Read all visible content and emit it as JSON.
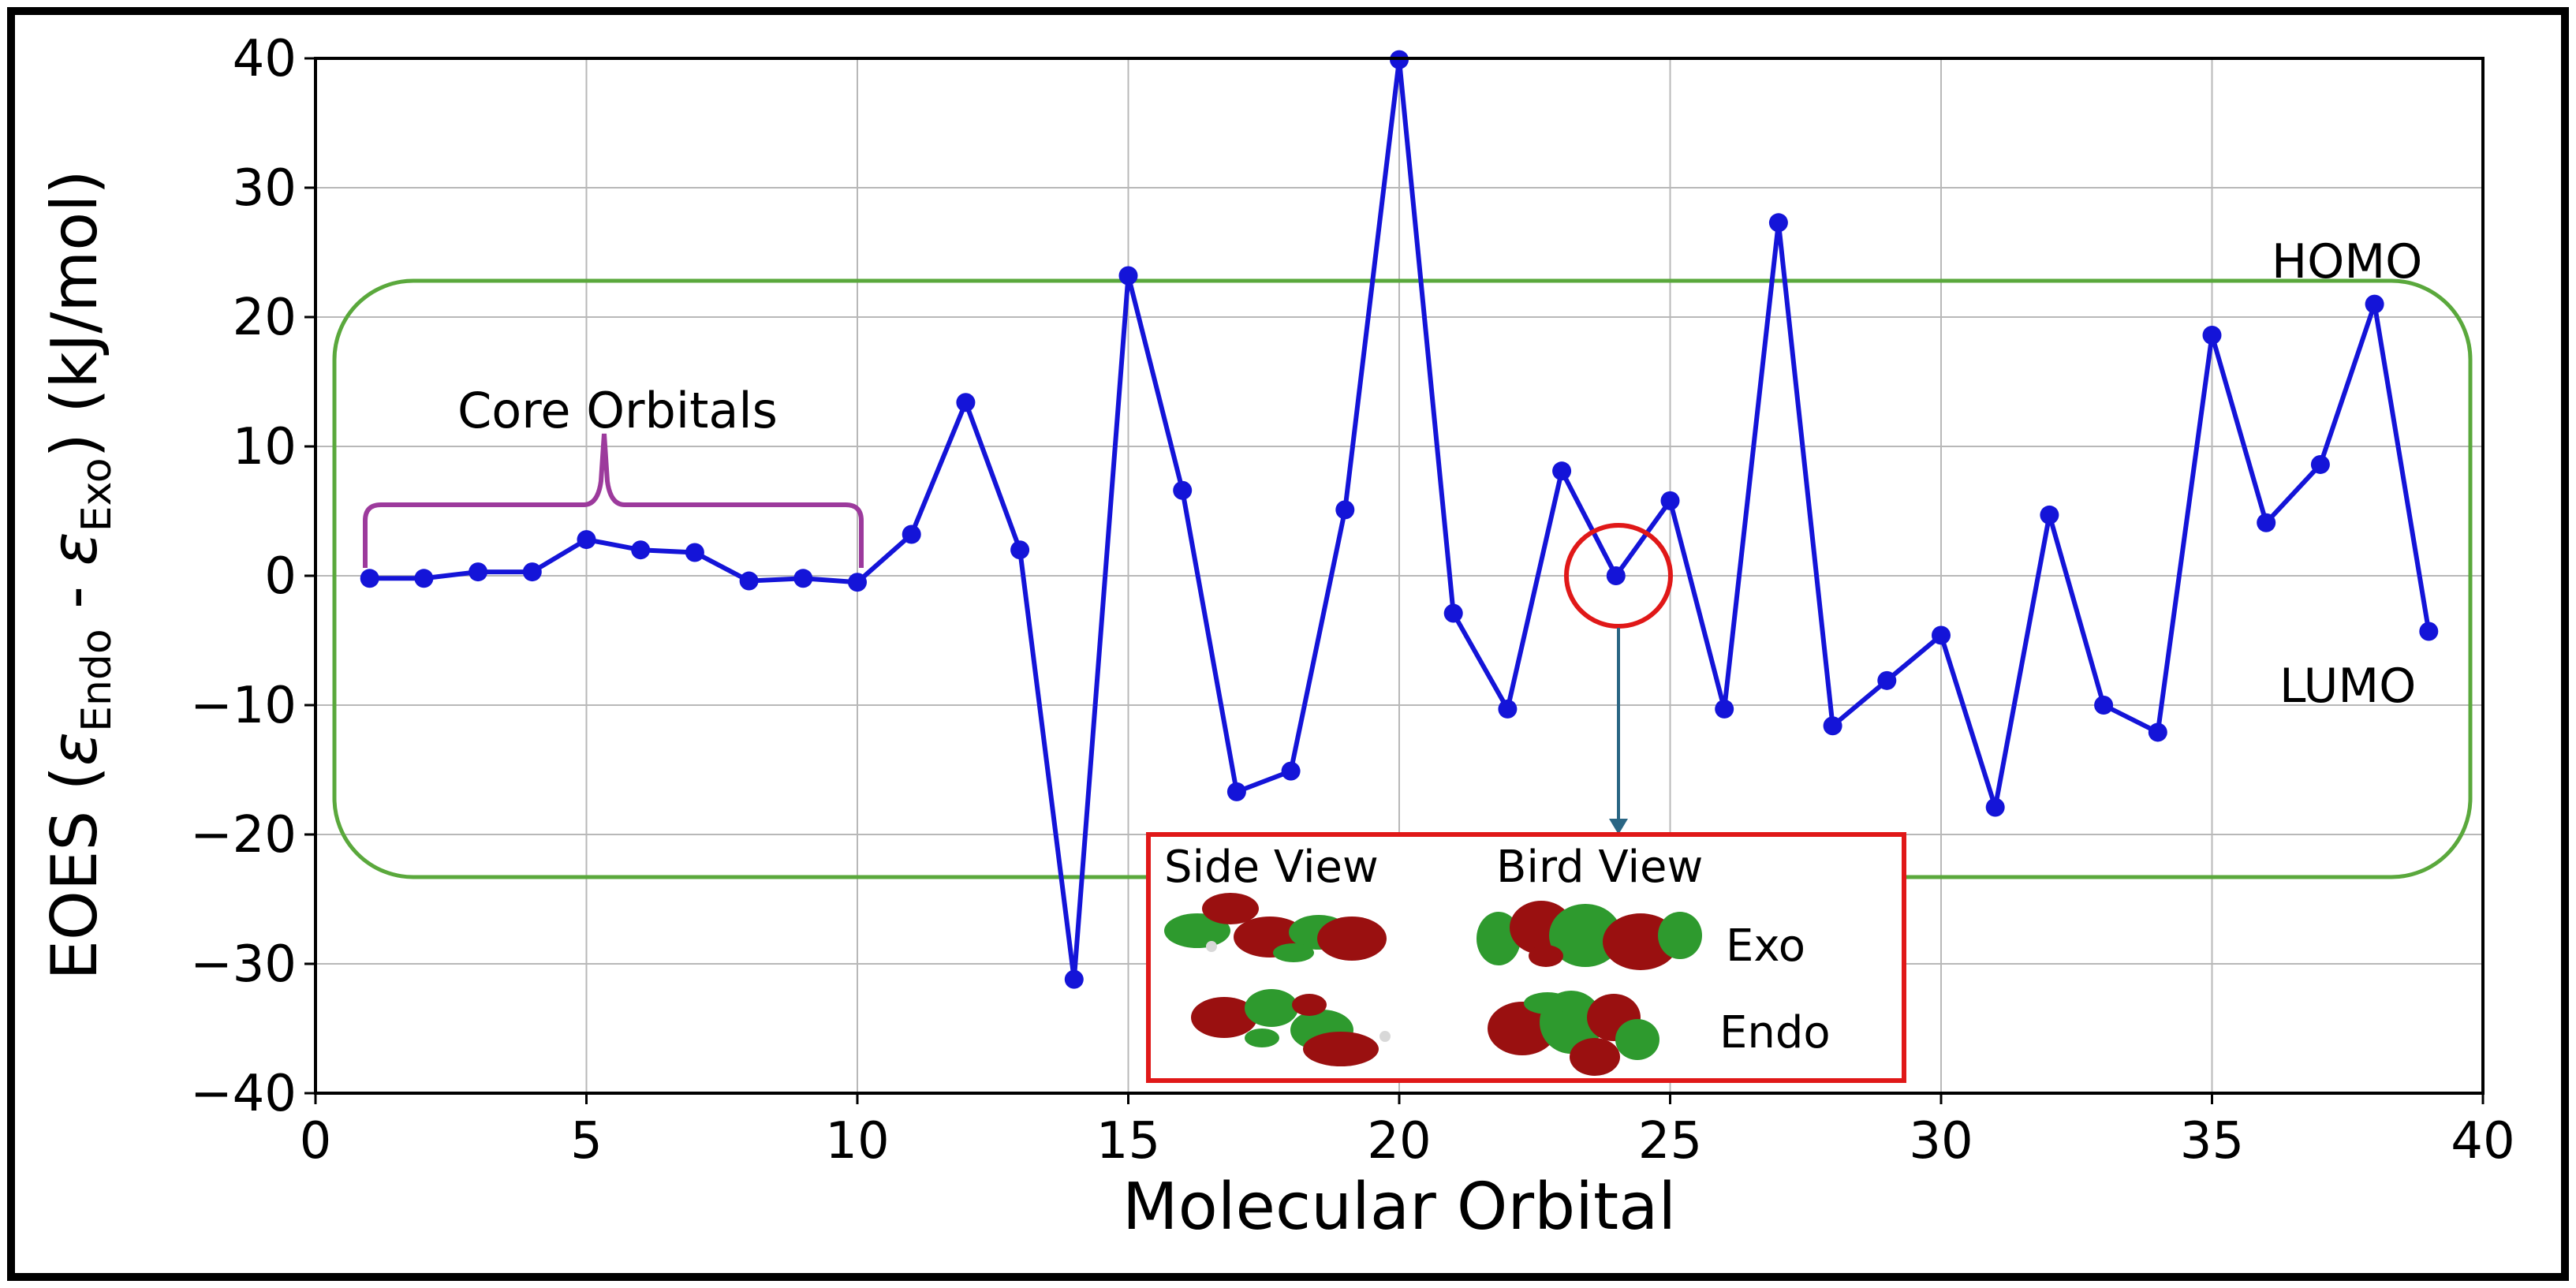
{
  "chart_data": {
    "type": "line",
    "xlabel": "Molecular Orbital",
    "ylabel": {
      "prefix": "EOES (",
      "symbol": "ε",
      "sub1": "Endo",
      "minus": " - ",
      "sub2": "Exo",
      "suffix": ") (kJ/mol)"
    },
    "xlim": [
      0,
      40
    ],
    "ylim": [
      -40,
      40
    ],
    "xticks": [
      0,
      5,
      10,
      15,
      20,
      25,
      30,
      35,
      40
    ],
    "yticks": [
      -40,
      -30,
      -20,
      -10,
      0,
      10,
      20,
      30,
      40
    ],
    "xtick_labels": [
      "0",
      "5",
      "10",
      "15",
      "20",
      "25",
      "30",
      "35",
      "40"
    ],
    "ytick_labels": [
      "−40",
      "−30",
      "−20",
      "−10",
      "0",
      "10",
      "20",
      "30",
      "40"
    ],
    "grid": true,
    "series": [
      {
        "color": "#1414d8",
        "x": [
          1,
          2,
          3,
          4,
          5,
          6,
          7,
          8,
          9,
          10,
          11,
          12,
          13,
          14,
          15,
          16,
          17,
          18,
          19,
          20,
          21,
          22,
          23,
          24,
          25,
          26,
          27,
          28,
          29,
          30,
          31,
          32,
          33,
          34,
          35,
          36,
          37,
          38,
          39
        ],
        "y": [
          -0.2,
          -0.2,
          0.3,
          0.3,
          2.8,
          2.0,
          1.8,
          -0.4,
          -0.2,
          -0.5,
          3.2,
          13.4,
          2.0,
          -31.2,
          23.2,
          6.6,
          -16.7,
          -15.1,
          5.1,
          39.9,
          -2.9,
          -10.3,
          8.1,
          0.0,
          5.8,
          -10.3,
          27.3,
          -11.6,
          -8.1,
          -4.6,
          -17.9,
          4.7,
          -10.0,
          -12.1,
          18.6,
          4.1,
          8.6,
          21.0,
          -4.3
        ]
      }
    ],
    "annotations": {
      "core_orbitals": "Core Orbitals",
      "homo": "HOMO",
      "lumo": "LUMO",
      "side_view": "Side View",
      "bird_view": "Bird View",
      "exo": "Exo",
      "endo": "Endo"
    },
    "colors": {
      "line": "#1414d8",
      "frontier_box": "#5aa83c",
      "core_bracket": "#9c3a9c",
      "highlight_circle": "#e01818",
      "inset_border": "#e01818",
      "arrow": "#2a6684",
      "orbital_red": "#9a1010",
      "orbital_green": "#2e9a2e"
    }
  }
}
